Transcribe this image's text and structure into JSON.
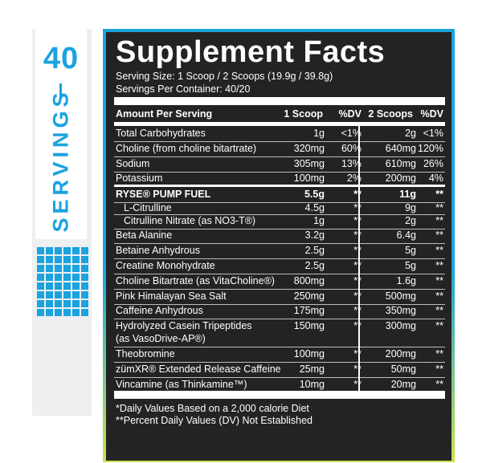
{
  "servings": {
    "count": "40",
    "label": "SERVINGS"
  },
  "title": "Supplement Facts",
  "serving_size": "Serving Size: 1 Scoop / 2 Scoops (19.9g / 39.8g)",
  "servings_per_container": "Servings Per Container: 40/20",
  "header": {
    "amount": "Amount Per Serving",
    "scoop1": "1 Scoop",
    "dv1": "%DV",
    "scoop2": "2 Scoops",
    "dv2": "%DV"
  },
  "rows": [
    {
      "name": "Total Carbohydrates",
      "a1": "1g",
      "d1": "<1%",
      "a2": "2g",
      "d2": "<1%"
    },
    {
      "name": "Choline (from choline bitartrate)",
      "a1": "320mg",
      "d1": "60%",
      "a2": "640mg",
      "d2": "120%"
    },
    {
      "name": "Sodium",
      "a1": "305mg",
      "d1": "13%",
      "a2": "610mg",
      "d2": "26%"
    },
    {
      "name": "Potassium",
      "a1": "100mg",
      "d1": "2%",
      "a2": "200mg",
      "d2": "4%"
    },
    {
      "name": "RYSE® PUMP FUEL",
      "a1": "5.5g",
      "d1": "**",
      "a2": "11g",
      "d2": "**"
    },
    {
      "name": "L-Citrulline",
      "a1": "4.5g",
      "d1": "**",
      "a2": "9g",
      "d2": "**"
    },
    {
      "name": "Citrulline Nitrate (as NO3-T®)",
      "a1": "1g",
      "d1": "**",
      "a2": "2g",
      "d2": "**"
    },
    {
      "name": "Beta Alanine",
      "a1": "3.2g",
      "d1": "**",
      "a2": "6.4g",
      "d2": "**"
    },
    {
      "name": "Betaine Anhydrous",
      "a1": "2.5g",
      "d1": "**",
      "a2": "5g",
      "d2": "**"
    },
    {
      "name": "Creatine Monohydrate",
      "a1": "2.5g",
      "d1": "**",
      "a2": "5g",
      "d2": "**"
    },
    {
      "name": "Choline Bitartrate (as VitaCholine®)",
      "a1": "800mg",
      "d1": "**",
      "a2": "1.6g",
      "d2": "**"
    },
    {
      "name": "Pink Himalayan Sea Salt",
      "a1": "250mg",
      "d1": "**",
      "a2": "500mg",
      "d2": "**"
    },
    {
      "name": "Caffeine Anhydrous",
      "a1": "175mg",
      "d1": "**",
      "a2": "350mg",
      "d2": "**"
    },
    {
      "name": "Hydrolyzed Casein Tripeptides",
      "name2": "(as VasoDrive-AP®)",
      "a1": "150mg",
      "d1": "**",
      "a2": "300mg",
      "d2": "**"
    },
    {
      "name": "Theobromine",
      "a1": "100mg",
      "d1": "**",
      "a2": "200mg",
      "d2": "**"
    },
    {
      "name": "zümXR® Extended Release Caffeine",
      "a1": "25mg",
      "d1": "**",
      "a2": "50mg",
      "d2": "**"
    },
    {
      "name": "Vincamine (as Thinkamine™)",
      "a1": "10mg",
      "d1": "**",
      "a2": "20mg",
      "d2": "**"
    }
  ],
  "footnote1": "*Daily Values Based on a 2,000 calorie Diet",
  "footnote2": "**Percent Daily Values (DV) Not Established",
  "colors": {
    "accent_blue": "#1aa3df",
    "panel_bg": "#232323",
    "accent_lime": "#d8e84a"
  }
}
